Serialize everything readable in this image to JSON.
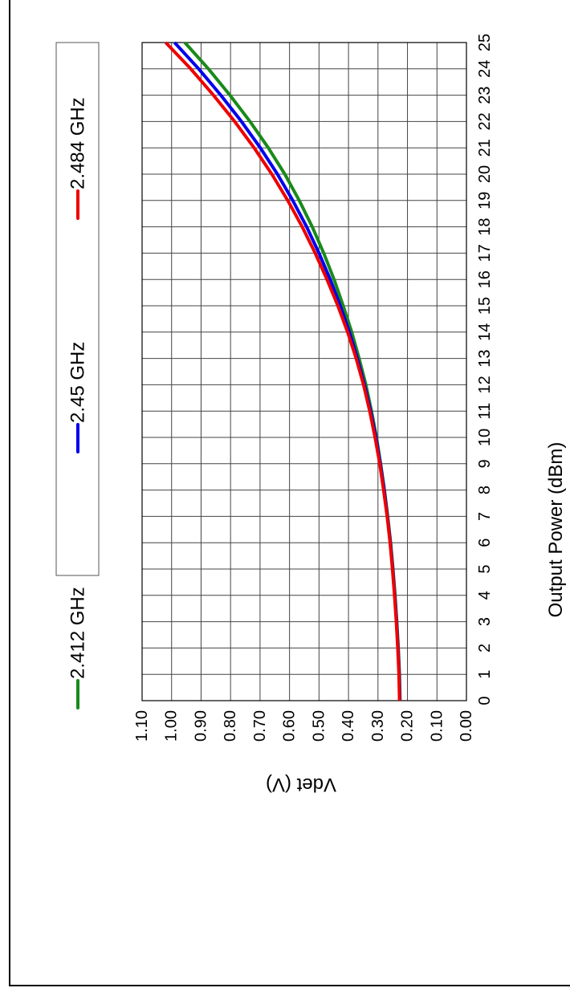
{
  "chart_data": {
    "type": "line",
    "xlabel": "Output Power (dBm)",
    "ylabel": "Vdet (V)",
    "xlim": [
      0,
      25
    ],
    "ylim": [
      0.0,
      1.1
    ],
    "x_ticks": [
      "0",
      "1",
      "2",
      "3",
      "4",
      "5",
      "6",
      "7",
      "8",
      "9",
      "10",
      "11",
      "12",
      "13",
      "14",
      "15",
      "16",
      "17",
      "18",
      "19",
      "20",
      "21",
      "22",
      "23",
      "24",
      "25"
    ],
    "y_ticks": [
      "0.00",
      "0.10",
      "0.20",
      "0.30",
      "0.40",
      "0.50",
      "0.60",
      "0.70",
      "0.80",
      "0.90",
      "1.00",
      "1.10"
    ],
    "grid": true,
    "legend_position": "top",
    "orientation": "rotated 90 degrees counter-clockwise",
    "x": [
      0,
      1,
      2,
      3,
      4,
      5,
      6,
      7,
      8,
      9,
      10,
      11,
      12,
      13,
      14,
      15,
      16,
      17,
      18,
      19,
      20,
      21,
      22,
      23,
      24,
      25
    ],
    "series": [
      {
        "name": "2.412 GHz",
        "color": "#1a8a1a",
        "values": [
          0.225,
          0.227,
          0.231,
          0.236,
          0.242,
          0.249,
          0.257,
          0.267,
          0.278,
          0.291,
          0.305,
          0.322,
          0.341,
          0.364,
          0.389,
          0.418,
          0.449,
          0.484,
          0.523,
          0.567,
          0.616,
          0.672,
          0.734,
          0.802,
          0.875,
          0.955
        ]
      },
      {
        "name": "2.45 GHz",
        "color": "#0000ee",
        "values": [
          0.226,
          0.228,
          0.232,
          0.237,
          0.243,
          0.25,
          0.258,
          0.268,
          0.279,
          0.292,
          0.307,
          0.325,
          0.346,
          0.37,
          0.397,
          0.428,
          0.462,
          0.5,
          0.542,
          0.589,
          0.641,
          0.699,
          0.763,
          0.833,
          0.908,
          0.99
        ]
      },
      {
        "name": "2.484 GHz",
        "color": "#ee0000",
        "values": [
          0.227,
          0.229,
          0.233,
          0.238,
          0.244,
          0.251,
          0.259,
          0.269,
          0.281,
          0.294,
          0.31,
          0.328,
          0.349,
          0.374,
          0.403,
          0.436,
          0.473,
          0.513,
          0.557,
          0.606,
          0.66,
          0.72,
          0.786,
          0.858,
          0.935,
          1.02
        ]
      }
    ]
  }
}
